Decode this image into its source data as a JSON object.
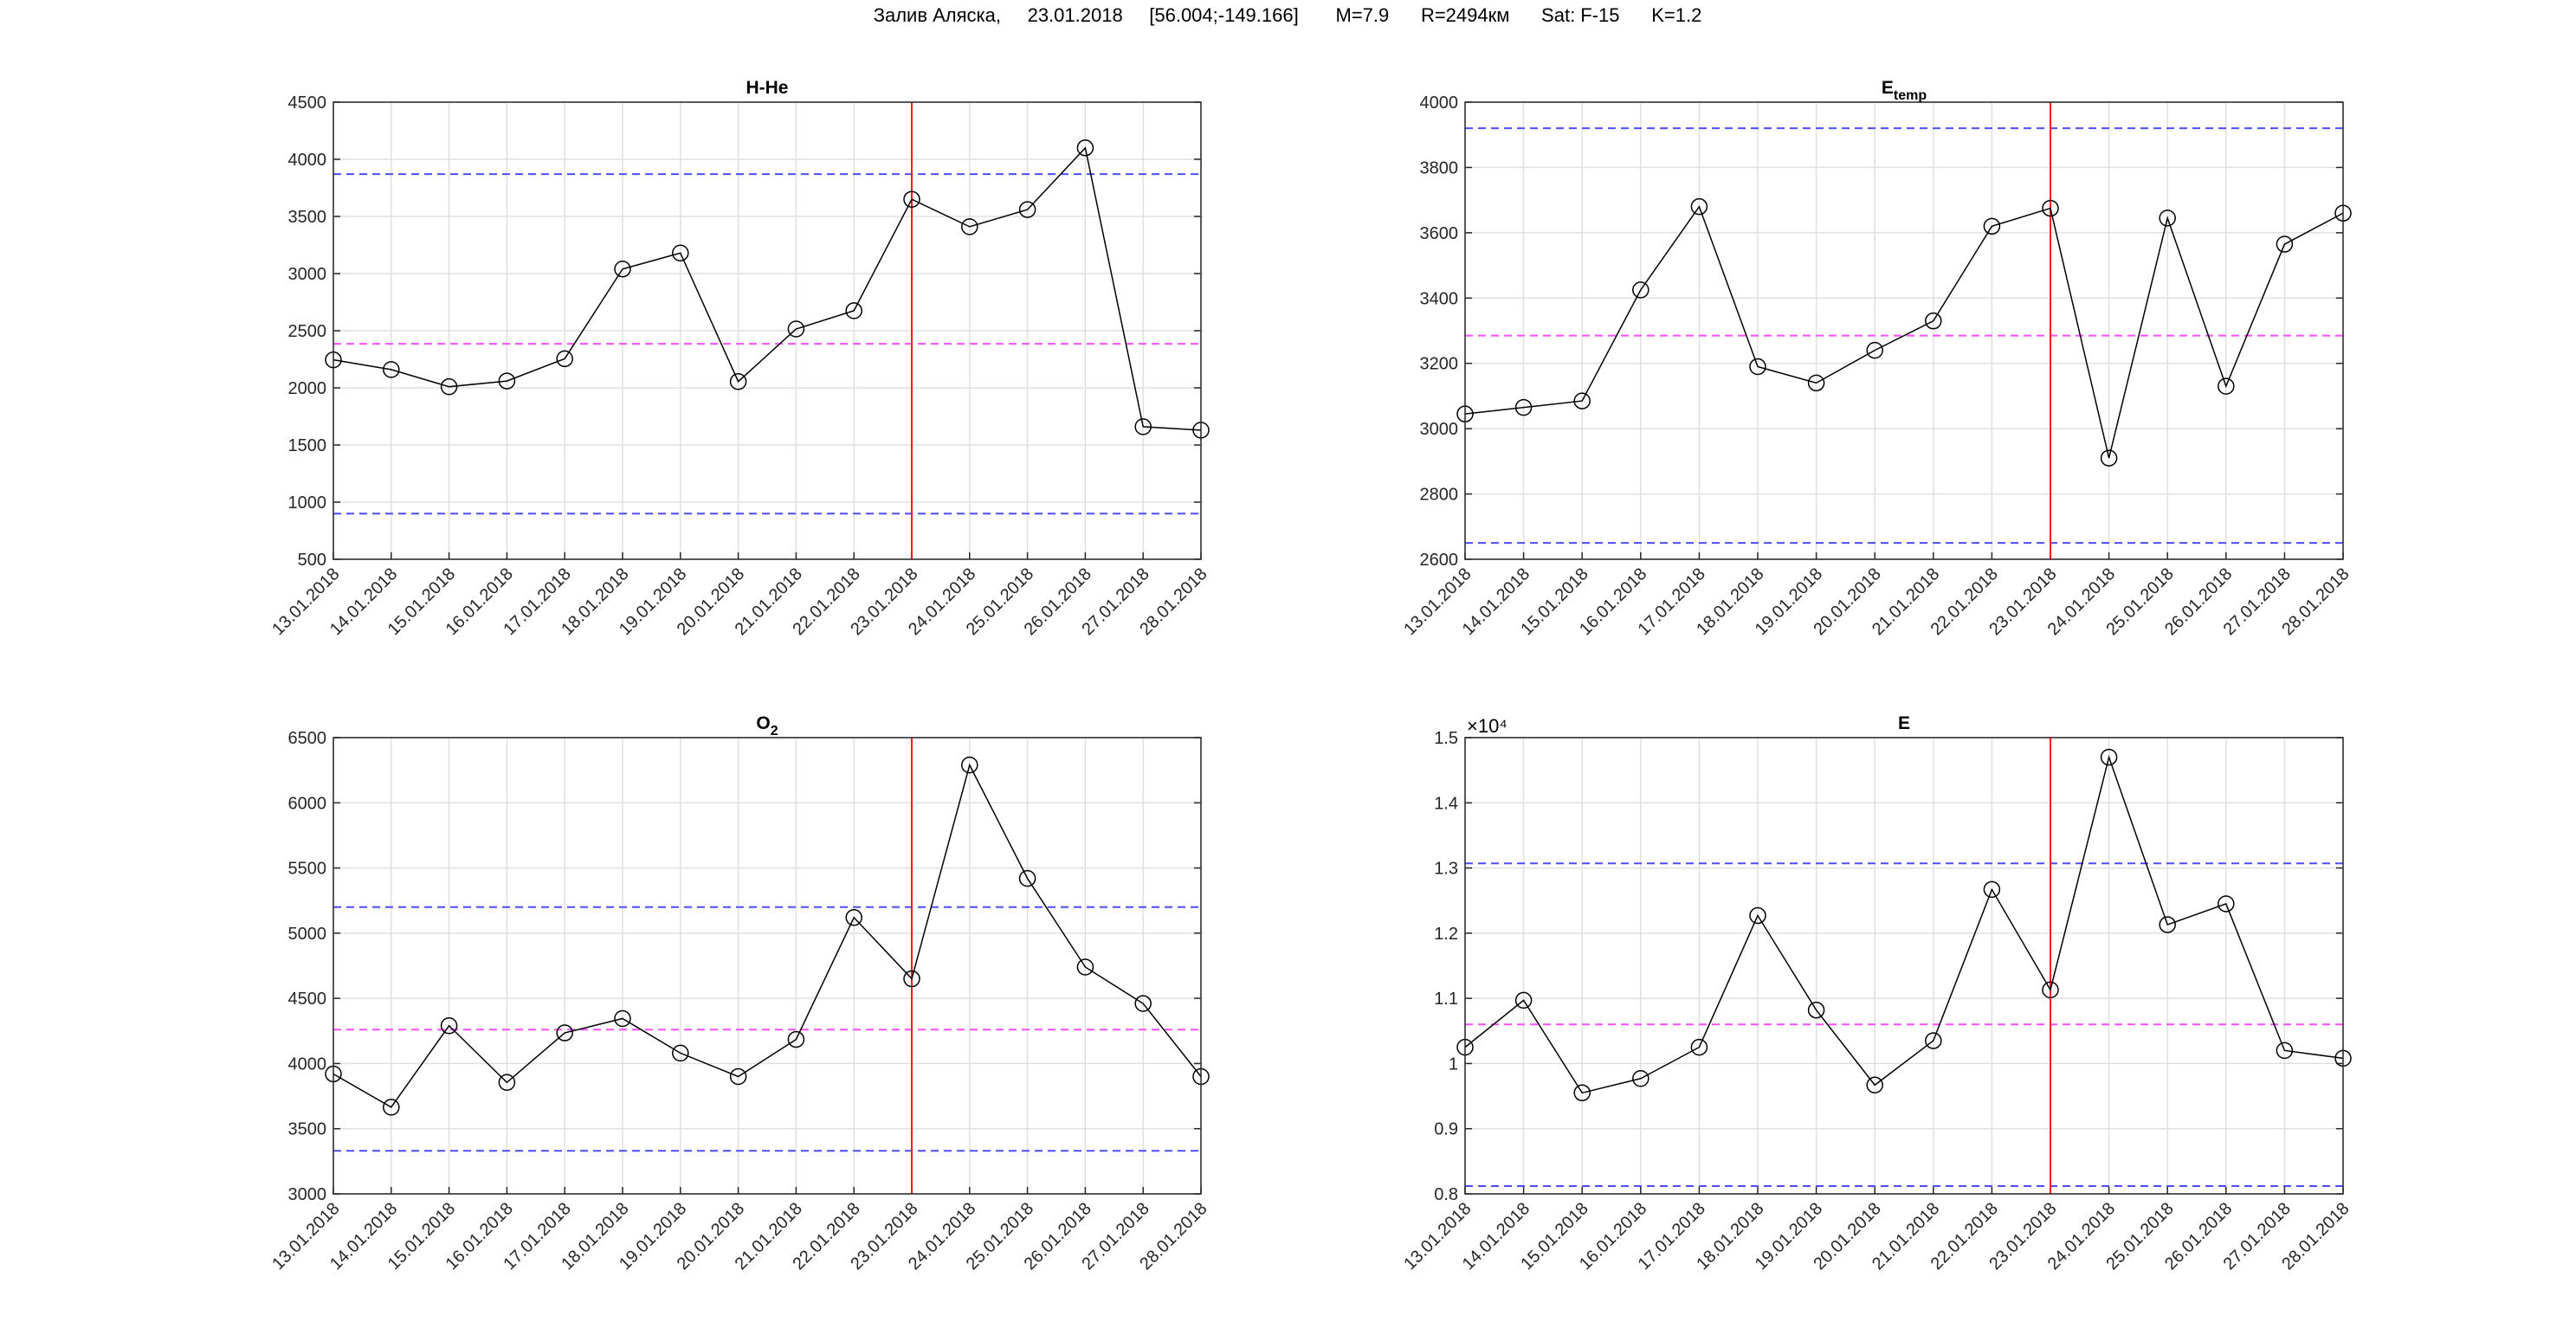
{
  "header": {
    "title": "Залив Аляска,     23.01.2018     [56.004;-149.166]       M=7.9      R=2494км      Sat: F-15      K=1.2"
  },
  "colors": {
    "series": "#000000",
    "upper": "#4d4dff",
    "lower": "#4d4dff",
    "mean": "#ff4dff",
    "event": "#ff0000",
    "grid": "#e0e0e0"
  },
  "chart_data": [
    {
      "type": "line",
      "title": "H-He",
      "title_sub": "",
      "ylim": [
        500,
        4500
      ],
      "yticks": [
        500,
        1000,
        1500,
        2000,
        2500,
        3000,
        3500,
        4000,
        4500
      ],
      "ytick_labels": [
        "500",
        "1000",
        "1500",
        "2000",
        "2500",
        "3000",
        "3500",
        "4000",
        "4500"
      ],
      "exponent": "",
      "categories": [
        "13.01.2018",
        "14.01.2018",
        "15.01.2018",
        "16.01.2018",
        "17.01.2018",
        "18.01.2018",
        "19.01.2018",
        "20.01.2018",
        "21.01.2018",
        "22.01.2018",
        "23.01.2018",
        "24.01.2018",
        "25.01.2018",
        "26.01.2018",
        "27.01.2018",
        "28.01.2018"
      ],
      "values": [
        2245,
        2160,
        2010,
        2060,
        2255,
        3040,
        3180,
        2055,
        2515,
        2675,
        3650,
        3410,
        3560,
        4100,
        1660,
        1630
      ],
      "upper": 3870,
      "mean": 2385,
      "lower": 900,
      "event_index": 10
    },
    {
      "type": "line",
      "title": "E",
      "title_sub": "temp",
      "ylim": [
        2600,
        4000
      ],
      "yticks": [
        2600,
        2800,
        3000,
        3200,
        3400,
        3600,
        3800,
        4000
      ],
      "ytick_labels": [
        "2600",
        "2800",
        "3000",
        "3200",
        "3400",
        "3600",
        "3800",
        "4000"
      ],
      "exponent": "",
      "categories": [
        "13.01.2018",
        "14.01.2018",
        "15.01.2018",
        "16.01.2018",
        "17.01.2018",
        "18.01.2018",
        "19.01.2018",
        "20.01.2018",
        "21.01.2018",
        "22.01.2018",
        "23.01.2018",
        "24.01.2018",
        "25.01.2018",
        "26.01.2018",
        "27.01.2018",
        "28.01.2018"
      ],
      "values": [
        3045,
        3065,
        3085,
        3425,
        3680,
        3190,
        3140,
        3240,
        3330,
        3620,
        3675,
        2910,
        3645,
        3130,
        3565,
        3660
      ],
      "upper": 3920,
      "mean": 3285,
      "lower": 2650,
      "event_index": 10
    },
    {
      "type": "line",
      "title": "O",
      "title_sub": "2",
      "ylim": [
        3000,
        6500
      ],
      "yticks": [
        3000,
        3500,
        4000,
        4500,
        5000,
        5500,
        6000,
        6500
      ],
      "ytick_labels": [
        "3000",
        "3500",
        "4000",
        "4500",
        "5000",
        "5500",
        "6000",
        "6500"
      ],
      "exponent": "",
      "categories": [
        "13.01.2018",
        "14.01.2018",
        "15.01.2018",
        "16.01.2018",
        "17.01.2018",
        "18.01.2018",
        "19.01.2018",
        "20.01.2018",
        "21.01.2018",
        "22.01.2018",
        "23.01.2018",
        "24.01.2018",
        "25.01.2018",
        "26.01.2018",
        "27.01.2018",
        "28.01.2018"
      ],
      "values": [
        3920,
        3665,
        4290,
        3855,
        4235,
        4345,
        4080,
        3900,
        4185,
        5120,
        4650,
        6290,
        5420,
        4740,
        4460,
        3900
      ],
      "upper": 5200,
      "mean": 4260,
      "lower": 3330,
      "event_index": 10
    },
    {
      "type": "line",
      "title": "E",
      "title_sub": "",
      "ylim": [
        0.8,
        1.5
      ],
      "yticks": [
        0.8,
        0.9,
        1.0,
        1.1,
        1.2,
        1.3,
        1.4,
        1.5
      ],
      "ytick_labels": [
        "0.8",
        "0.9",
        "1",
        "1.1",
        "1.2",
        "1.3",
        "1.4",
        "1.5"
      ],
      "exponent": "×10⁴",
      "categories": [
        "13.01.2018",
        "14.01.2018",
        "15.01.2018",
        "16.01.2018",
        "17.01.2018",
        "18.01.2018",
        "19.01.2018",
        "20.01.2018",
        "21.01.2018",
        "22.01.2018",
        "23.01.2018",
        "24.01.2018",
        "25.01.2018",
        "26.01.2018",
        "27.01.2018",
        "28.01.2018"
      ],
      "values": [
        1.025,
        1.097,
        0.955,
        0.977,
        1.025,
        1.227,
        1.082,
        0.967,
        1.035,
        1.267,
        1.113,
        1.47,
        1.213,
        1.245,
        1.02,
        1.008
      ],
      "upper": 1.307,
      "mean": 1.06,
      "lower": 0.812,
      "event_index": 10
    }
  ]
}
